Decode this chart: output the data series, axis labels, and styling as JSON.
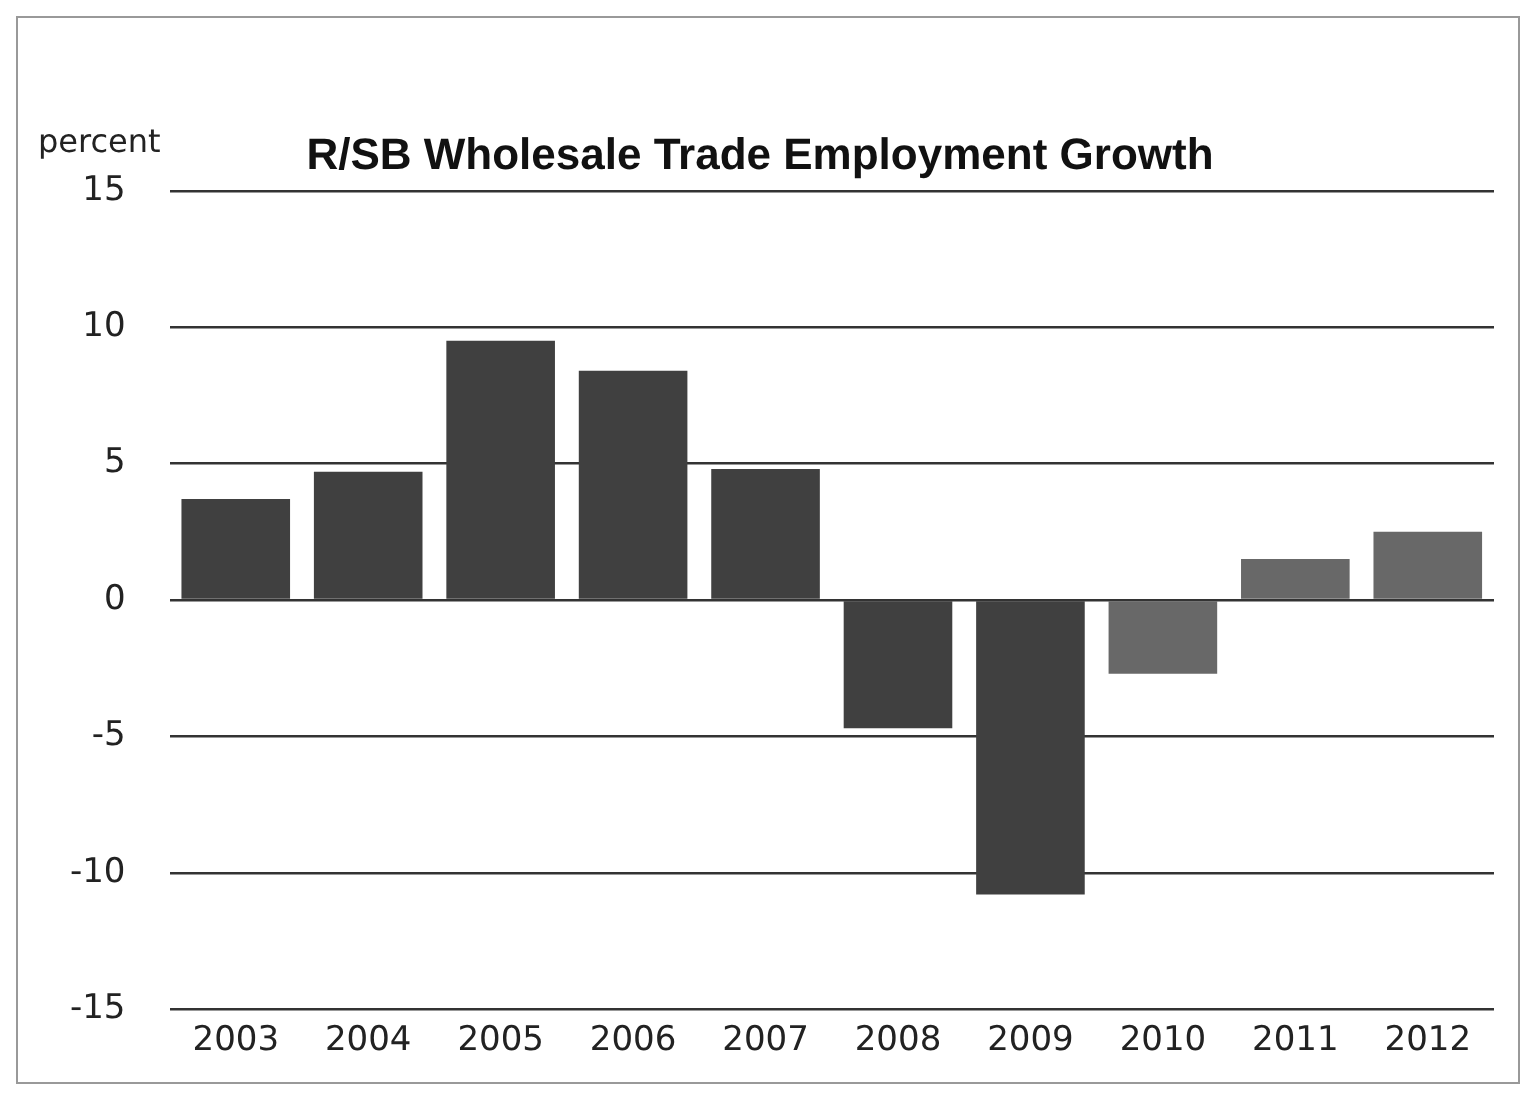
{
  "chart_data": {
    "type": "bar",
    "title": "R/SB Wholesale Trade Employment Growth",
    "ylabel": "percent",
    "categories": [
      "2003",
      "2004",
      "2005",
      "2006",
      "2007",
      "2008",
      "2009",
      "2010",
      "2011",
      "2012"
    ],
    "values": [
      3.7,
      4.7,
      9.5,
      8.4,
      4.8,
      -4.7,
      -10.8,
      -2.7,
      1.5,
      2.5
    ],
    "colors": [
      "#404040",
      "#404040",
      "#404040",
      "#404040",
      "#404040",
      "#404040",
      "#404040",
      "#686868",
      "#686868",
      "#686868"
    ],
    "ylim": [
      -15,
      15
    ],
    "yticks": [
      -15,
      -10,
      -5,
      0,
      5,
      10,
      15
    ],
    "grid": "y",
    "legend": false
  }
}
